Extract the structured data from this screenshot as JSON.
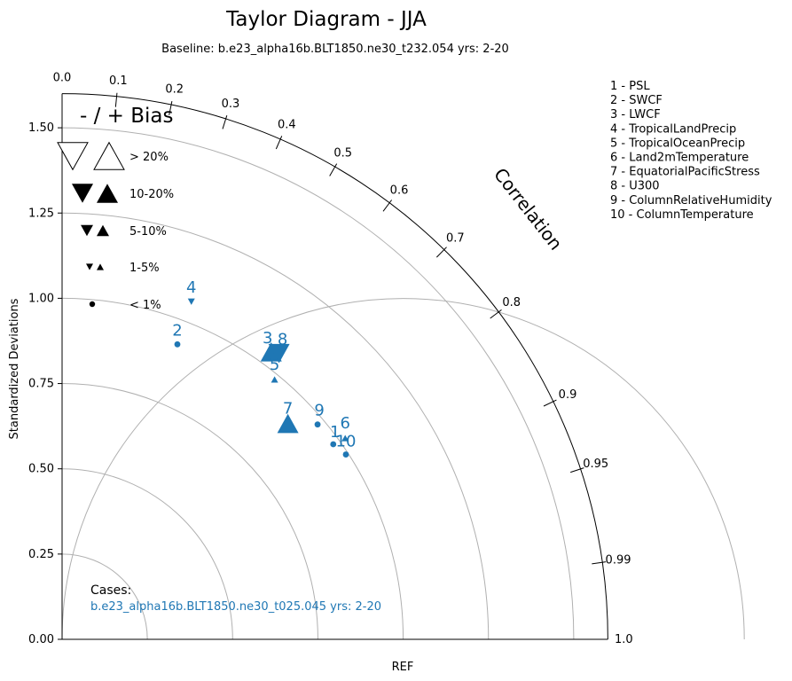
{
  "chart_data": {
    "type": "scatter",
    "subtype": "taylor-diagram",
    "title": "Taylor Diagram - JJA",
    "subtitle": "Baseline: b.e23_alpha16b.BLT1850.ne30_t232.054  yrs: 2-20",
    "ylabel": "Standardized Deviations",
    "xlabel": "REF",
    "arc_label": "Correlation",
    "ylim": [
      0,
      1.6
    ],
    "y_ticks": [
      "0.00",
      "0.25",
      "0.50",
      "0.75",
      "1.00",
      "1.25",
      "1.50"
    ],
    "y_tick_values": [
      0,
      0.25,
      0.5,
      0.75,
      1.0,
      1.25,
      1.5
    ],
    "std_circles": [
      0.25,
      0.5,
      0.75,
      1.0,
      1.25,
      1.5
    ],
    "correlation_ticks": [
      {
        "value": 0.0,
        "label": "0.0"
      },
      {
        "value": 0.1,
        "label": "0.1"
      },
      {
        "value": 0.2,
        "label": "0.2"
      },
      {
        "value": 0.3,
        "label": "0.3"
      },
      {
        "value": 0.4,
        "label": "0.4"
      },
      {
        "value": 0.5,
        "label": "0.5"
      },
      {
        "value": 0.6,
        "label": "0.6"
      },
      {
        "value": 0.7,
        "label": "0.7"
      },
      {
        "value": 0.8,
        "label": "0.8"
      },
      {
        "value": 0.9,
        "label": "0.9"
      },
      {
        "value": 0.95,
        "label": "0.95"
      },
      {
        "value": 0.99,
        "label": "0.99"
      },
      {
        "value": 1.0,
        "label": "1.0"
      }
    ],
    "bias_legend": {
      "title": "- / + Bias",
      "entries": [
        {
          "label": "> 20%",
          "marker": "triangle-open"
        },
        {
          "label": "10-20%",
          "marker": "triangle-large"
        },
        {
          "label": "5-10%",
          "marker": "triangle-medium"
        },
        {
          "label": "1-5%",
          "marker": "triangle-small"
        },
        {
          "label": "< 1%",
          "marker": "dot"
        }
      ]
    },
    "variables": [
      "1 - PSL",
      "2 - SWCF",
      "3 - LWCF",
      "4 - TropicalLandPrecip",
      "5 - TropicalOceanPrecip",
      "6 - Land2mTemperature",
      "7 - EquatorialPacificStress",
      "8 - U300",
      "9 - ColumnRelativeHumidity",
      "10 - ColumnTemperature"
    ],
    "cases_title": "Cases:",
    "case_name": "b.e23_alpha16b.BLT1850.ne30_t025.045  yrs: 2-20",
    "case_color": "#1f77b4",
    "points": [
      {
        "label": "1",
        "x": 0.795,
        "y": 0.572,
        "marker": "dot"
      },
      {
        "label": "2",
        "x": 0.338,
        "y": 0.865,
        "marker": "dot"
      },
      {
        "label": "3",
        "x": 0.613,
        "y": 0.843,
        "marker": "up-large"
      },
      {
        "label": "4",
        "x": 0.379,
        "y": 0.99,
        "marker": "down-small"
      },
      {
        "label": "5",
        "x": 0.623,
        "y": 0.762,
        "marker": "up-small"
      },
      {
        "label": "6",
        "x": 0.83,
        "y": 0.59,
        "marker": "up-small"
      },
      {
        "label": "7",
        "x": 0.662,
        "y": 0.633,
        "marker": "up-large"
      },
      {
        "label": "8",
        "x": 0.636,
        "y": 0.838,
        "marker": "down-large"
      },
      {
        "label": "9",
        "x": 0.749,
        "y": 0.63,
        "marker": "dot"
      },
      {
        "label": "10",
        "x": 0.832,
        "y": 0.542,
        "marker": "dot"
      }
    ]
  }
}
